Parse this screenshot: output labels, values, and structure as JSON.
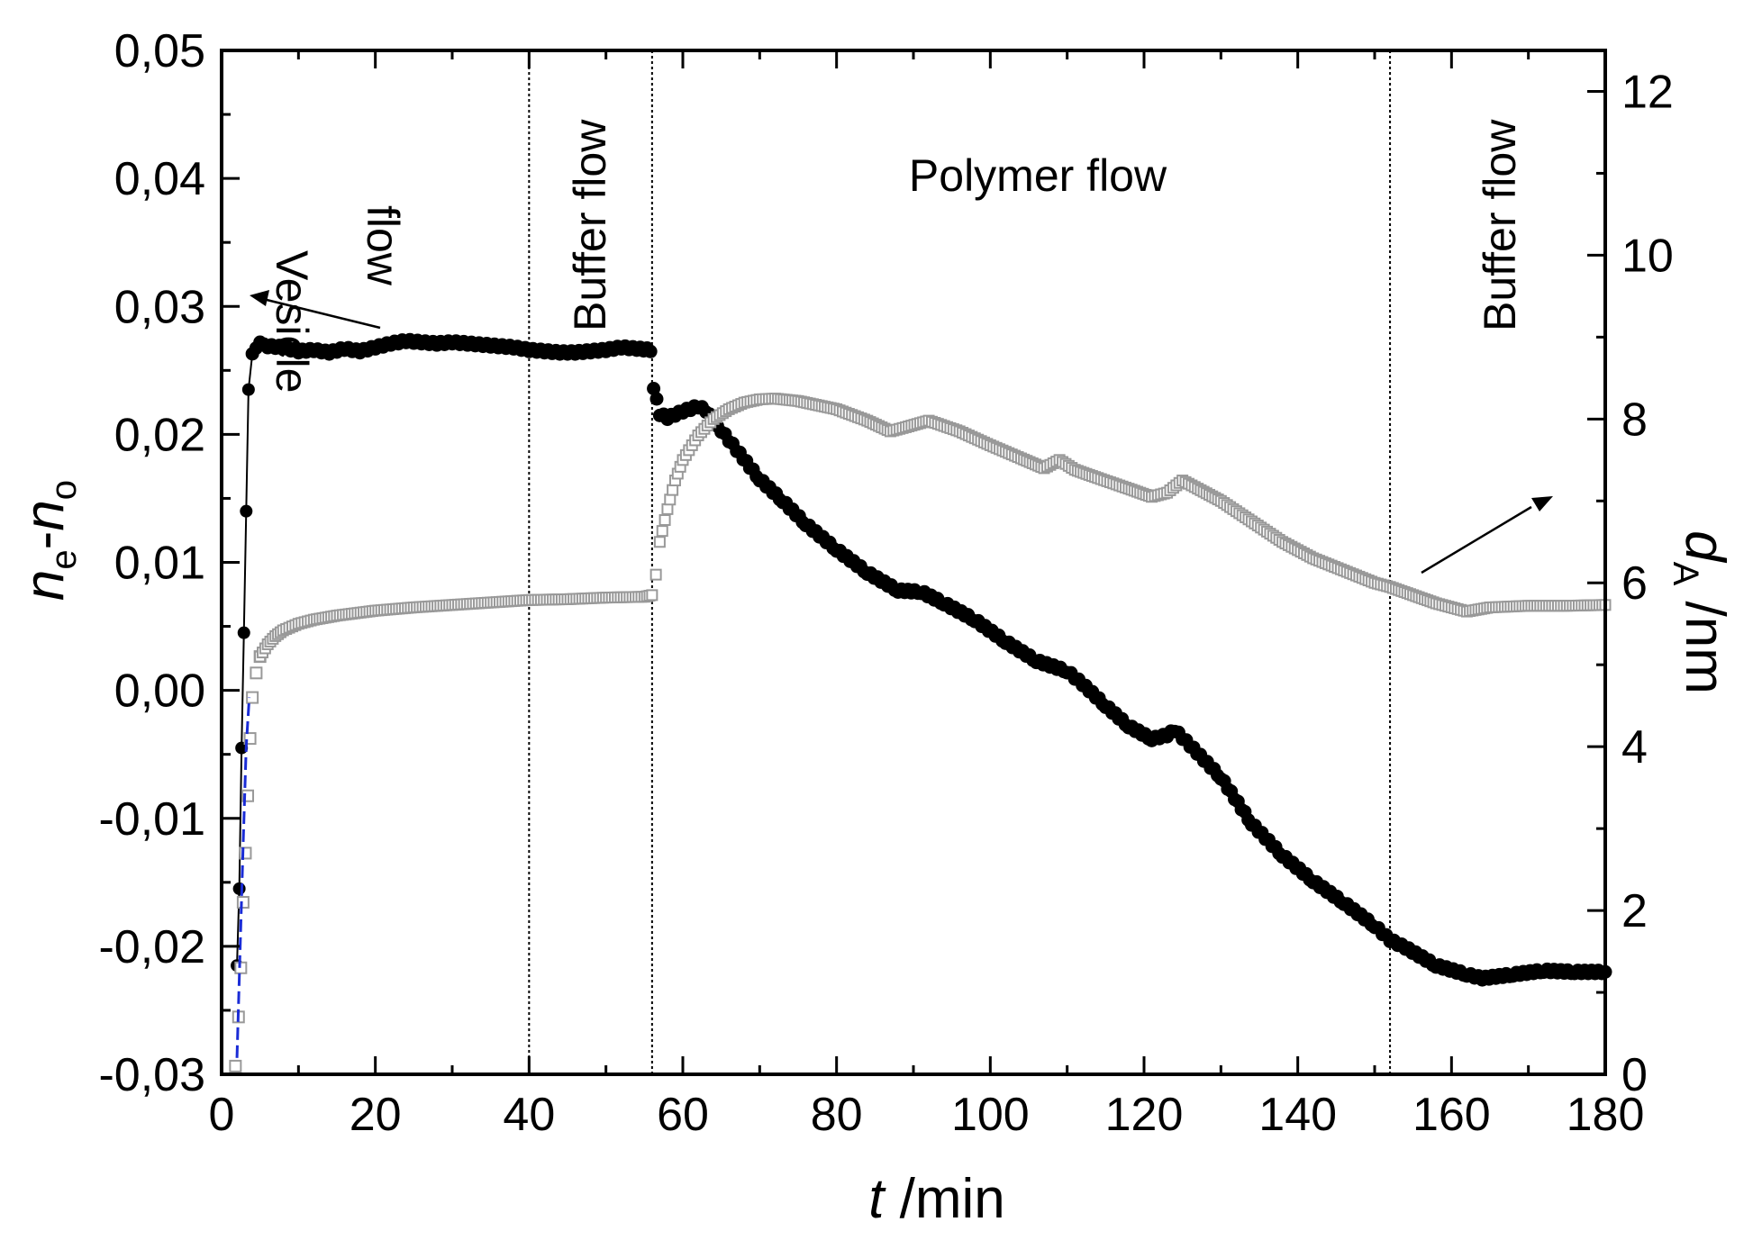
{
  "chart_data": {
    "type": "scatter",
    "xlabel_italic": "t",
    "xlabel_rest": " /min",
    "ylabel_left_n": "n",
    "ylabel_left_sub_e": "e",
    "ylabel_left_dash": "-",
    "ylabel_left_sub_o": "o",
    "ylabel_right_d": "d",
    "ylabel_right_sub": "A",
    "ylabel_right_rest": " /nm",
    "xlim": [
      0,
      180
    ],
    "ylim_left": [
      -0.03,
      0.05
    ],
    "ylim_right": [
      0,
      12.5
    ],
    "x_ticks": [
      0,
      20,
      40,
      60,
      80,
      100,
      120,
      140,
      160,
      180
    ],
    "x_tick_labels": [
      "0",
      "20",
      "40",
      "60",
      "80",
      "100",
      "120",
      "140",
      "160",
      "180"
    ],
    "y_left_ticks": [
      -0.03,
      -0.02,
      -0.01,
      0.0,
      0.01,
      0.02,
      0.03,
      0.04,
      0.05
    ],
    "y_left_tick_labels": [
      "-0,03",
      "-0,02",
      "-0,01",
      "0,00",
      "0,01",
      "0,02",
      "0,03",
      "0,04",
      "0,05"
    ],
    "y_right_ticks": [
      0,
      2,
      4,
      6,
      8,
      10,
      12
    ],
    "y_right_tick_labels": [
      "0",
      "2",
      "4",
      "6",
      "8",
      "10",
      "12"
    ],
    "vlines": [
      40,
      56,
      152
    ],
    "annotations": [
      {
        "name": "vesicle-flow",
        "lines": [
          "Vesicle",
          "flow"
        ]
      },
      {
        "name": "buffer-flow-1",
        "lines": [
          "Buffer flow"
        ]
      },
      {
        "name": "polymer-flow",
        "lines": [
          "Polymer flow"
        ]
      },
      {
        "name": "buffer-flow-2",
        "lines": [
          "Buffer flow"
        ]
      }
    ],
    "series": [
      {
        "name": "ne-no",
        "axis": "left",
        "marker": "filled-circle",
        "color": "#000000",
        "x": [
          2,
          2.3,
          2.6,
          2.9,
          3.2,
          3.5,
          4,
          5,
          6,
          8,
          10,
          12,
          14,
          16,
          18,
          20,
          22,
          24,
          26,
          28,
          30,
          32,
          34,
          36,
          38,
          40,
          42,
          44,
          46,
          48,
          50,
          52,
          54,
          55.8,
          56.2,
          57,
          58,
          60,
          62,
          63.5,
          65,
          67,
          70,
          73,
          76,
          80,
          84,
          88,
          91,
          94,
          98,
          102,
          106,
          110,
          112,
          115,
          118,
          121,
          123,
          124,
          126,
          130,
          134,
          138,
          142,
          146,
          150,
          152,
          154,
          158,
          162,
          164,
          168,
          172,
          176,
          180
        ],
        "values": [
          -0.0215,
          -0.0155,
          -0.0045,
          0.0045,
          0.014,
          0.0235,
          0.0263,
          0.0272,
          0.0269,
          0.0268,
          0.0265,
          0.0266,
          0.0264,
          0.0267,
          0.0265,
          0.0268,
          0.0271,
          0.0273,
          0.0272,
          0.0271,
          0.0272,
          0.0271,
          0.027,
          0.0269,
          0.0268,
          0.0266,
          0.0265,
          0.0264,
          0.0264,
          0.0265,
          0.0266,
          0.0268,
          0.0267,
          0.0266,
          0.0237,
          0.0216,
          0.0213,
          0.0218,
          0.0222,
          0.0217,
          0.0203,
          0.0188,
          0.0165,
          0.0148,
          0.013,
          0.011,
          0.0092,
          0.0078,
          0.0077,
          0.0068,
          0.0055,
          0.0038,
          0.0023,
          0.0015,
          0.0005,
          -0.0012,
          -0.0028,
          -0.0038,
          -0.0035,
          -0.0031,
          -0.0043,
          -0.0068,
          -0.0104,
          -0.0129,
          -0.0149,
          -0.0166,
          -0.0184,
          -0.0195,
          -0.0201,
          -0.0215,
          -0.0222,
          -0.0225,
          -0.0222,
          -0.0219,
          -0.022,
          -0.022
        ]
      },
      {
        "name": "dA",
        "axis": "right",
        "marker": "open-square",
        "color": "#999999",
        "x": [
          1.8,
          2.2,
          2.5,
          2.8,
          3.1,
          3.4,
          3.7,
          4,
          4.5,
          5,
          6,
          7,
          8,
          10,
          12,
          15,
          20,
          25,
          30,
          35,
          40,
          45,
          50,
          55,
          56,
          56.5,
          57,
          58,
          59,
          60,
          62,
          64,
          66,
          68,
          70,
          72,
          75,
          80,
          84,
          87,
          89,
          92,
          96,
          100,
          104,
          107,
          109,
          111,
          114,
          118,
          121,
          123,
          125,
          127,
          130,
          134,
          138,
          142,
          146,
          150,
          152,
          155,
          158,
          162,
          165,
          170,
          175,
          180
        ],
        "values": [
          0.1,
          0.7,
          1.3,
          2.1,
          2.7,
          3.4,
          4.1,
          4.6,
          4.9,
          5.1,
          5.25,
          5.35,
          5.42,
          5.5,
          5.55,
          5.6,
          5.66,
          5.7,
          5.73,
          5.76,
          5.79,
          5.8,
          5.82,
          5.83,
          5.85,
          6.1,
          6.5,
          6.9,
          7.25,
          7.5,
          7.8,
          8.0,
          8.12,
          8.2,
          8.24,
          8.25,
          8.22,
          8.12,
          7.98,
          7.85,
          7.9,
          7.98,
          7.85,
          7.68,
          7.52,
          7.4,
          7.5,
          7.38,
          7.28,
          7.15,
          7.05,
          7.1,
          7.25,
          7.15,
          7.0,
          6.75,
          6.5,
          6.3,
          6.15,
          6.0,
          5.95,
          5.85,
          5.75,
          5.65,
          5.7,
          5.72,
          5.72,
          5.73
        ]
      },
      {
        "name": "dA-fit",
        "axis": "right",
        "marker": "dash-line",
        "color": "#1a2cd6",
        "x": [
          2.0,
          2.4,
          2.8,
          3.2,
          3.6
        ],
        "values": [
          0.2,
          1.5,
          2.8,
          4.0,
          4.6
        ]
      }
    ]
  }
}
